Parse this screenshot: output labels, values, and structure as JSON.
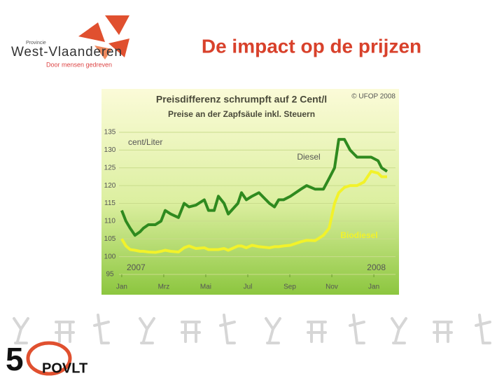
{
  "header": {
    "title": "De impact op de prijzen",
    "logo": {
      "small": "Provincie",
      "name": "West-Vlaanderen",
      "tagline": "Door mensen gedreven"
    }
  },
  "chart_data": {
    "type": "line",
    "title": "Preisdifferenz schrumpft auf 2 Cent/l",
    "subtitle": "Preise an der Zapfsäule inkl. Steuern",
    "source": "© UFOP 2008",
    "y_label": "cent/Liter",
    "year_labels": [
      "2007",
      "2008"
    ],
    "x": [
      0,
      0.2,
      0.4,
      0.63,
      0.87,
      1.03,
      1.27,
      1.6,
      1.87,
      2.07,
      2.33,
      2.7,
      2.97,
      3.2,
      3.53,
      3.93,
      4.13,
      4.4,
      4.6,
      4.87,
      5.07,
      5.53,
      5.7,
      5.93,
      6.2,
      6.53,
      7.03,
      7.27,
      7.47,
      7.7,
      8.03,
      8.53,
      8.8,
      9.2,
      9.6,
      9.87,
      10.13,
      10.33,
      10.6,
      10.87,
      11.2,
      11.53,
      11.87,
      12.2,
      12.37,
      12.63
    ],
    "series": [
      {
        "name": "Diesel",
        "color": "#2f8a1f",
        "values": [
          113,
          110,
          108,
          106,
          107,
          108,
          109,
          109,
          110,
          113,
          112,
          111,
          115,
          114,
          114.5,
          116,
          113,
          113,
          117,
          115,
          112,
          115,
          118,
          116,
          117,
          118,
          115,
          114,
          116,
          116,
          117,
          119,
          120,
          119,
          119,
          122,
          125,
          133,
          133,
          130,
          128,
          128,
          128,
          127,
          125,
          124
        ]
      },
      {
        "name": "Biodiesel",
        "color": "#f2f22a",
        "values": [
          105,
          103,
          102,
          101.8,
          101.5,
          101.5,
          101.3,
          101.2,
          101.5,
          101.8,
          101.5,
          101.3,
          102.5,
          103,
          102.3,
          102.5,
          102,
          102,
          102,
          102.3,
          101.8,
          103,
          103,
          102.5,
          103.2,
          102.8,
          102.5,
          102.8,
          102.8,
          103,
          103.2,
          104.2,
          104.6,
          104.5,
          106,
          108,
          115,
          118,
          119.5,
          120,
          120,
          121,
          124,
          123.5,
          122.5,
          122.5
        ]
      }
    ],
    "xlim": [
      -0.13,
      13.03
    ],
    "xticks": [
      {
        "value": 0,
        "label": "Jan"
      },
      {
        "value": 2,
        "label": "Mrz"
      },
      {
        "value": 4,
        "label": "Mai"
      },
      {
        "value": 6,
        "label": "Jul"
      },
      {
        "value": 8,
        "label": "Sep"
      },
      {
        "value": 10,
        "label": "Nov"
      },
      {
        "value": 12,
        "label": "Jan"
      }
    ],
    "ylim": [
      95,
      135
    ],
    "yticks": [
      95,
      100,
      105,
      110,
      115,
      120,
      125,
      130,
      135
    ],
    "grid": true
  },
  "footer": {
    "logo_number": "5",
    "logo_text": "POVLT"
  }
}
